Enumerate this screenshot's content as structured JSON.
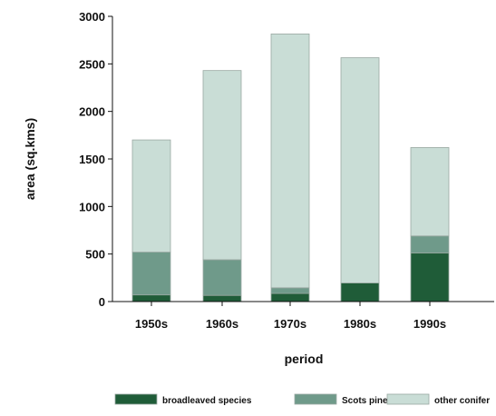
{
  "chart_data": {
    "type": "bar",
    "stacked": true,
    "categories": [
      "1950s",
      "1960s",
      "1970s",
      "1980s",
      "1990s"
    ],
    "series": [
      {
        "name": "broadleaved species",
        "color": "#1f5c38",
        "values": [
          70,
          65,
          85,
          195,
          510
        ]
      },
      {
        "name": "Scots pine",
        "color": "#6f9a8a",
        "values": [
          450,
          375,
          60,
          0,
          180
        ]
      },
      {
        "name": "other conifer",
        "color": "#c9ddd6",
        "values": [
          1180,
          1990,
          2670,
          2370,
          930
        ]
      }
    ],
    "xlabel": "period",
    "ylabel": "area (sq.kms)",
    "ylim": [
      0,
      3000
    ],
    "yticks": [
      "0",
      "500",
      "1000",
      "1500",
      "2000",
      "2500",
      "3000"
    ],
    "legend_position": "bottom",
    "grid": false
  }
}
